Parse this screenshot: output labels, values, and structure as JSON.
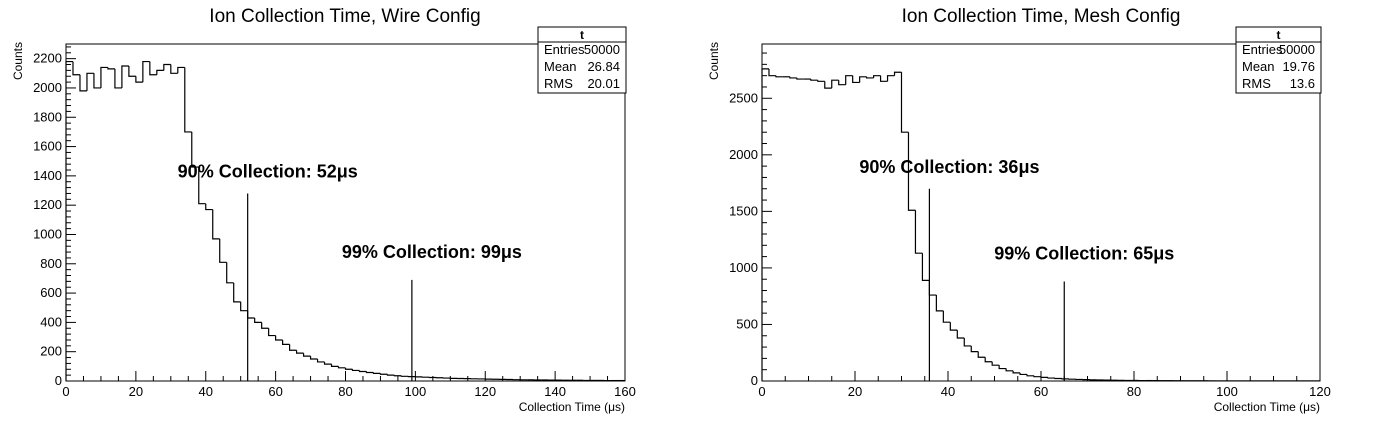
{
  "chart_data": [
    {
      "type": "histogram",
      "title": "Ion Collection Time, Wire Config",
      "xlabel": "Collection Time (μs)",
      "ylabel": "Counts",
      "xlim": [
        0,
        160
      ],
      "ylim": [
        0,
        2300
      ],
      "xticks": [
        0,
        20,
        40,
        60,
        80,
        100,
        120,
        140,
        160
      ],
      "yticks": [
        0,
        200,
        400,
        600,
        800,
        1000,
        1200,
        1400,
        1600,
        1800,
        2000,
        2200
      ],
      "bin_width": 2,
      "series": [
        {
          "values": [
            2180,
            2090,
            1980,
            2100,
            2000,
            2140,
            2130,
            2000,
            2150,
            2080,
            2040,
            2180,
            2090,
            2120,
            2160,
            2100,
            2140,
            1700,
            1460,
            1210,
            1170,
            970,
            810,
            670,
            540,
            480,
            430,
            400,
            360,
            310,
            280,
            250,
            210,
            190,
            170,
            150,
            130,
            115,
            100,
            90,
            80,
            72,
            65,
            58,
            52,
            46,
            40,
            36,
            32,
            30,
            28,
            26,
            24,
            22,
            20,
            18,
            17,
            16,
            15,
            14,
            13,
            12,
            11,
            10,
            9,
            8,
            8,
            7,
            7,
            6,
            6,
            5,
            5,
            5,
            4,
            4,
            4,
            3,
            3,
            3
          ]
        }
      ],
      "annotations": [
        {
          "label": "90% Collection: 52μs",
          "x": 52,
          "line_top": 1280
        },
        {
          "label": "99% Collection: 99μs",
          "x": 99,
          "line_top": 690
        }
      ],
      "stats": {
        "name": "t",
        "rows": [
          {
            "label": "Entries",
            "value": "50000"
          },
          {
            "label": "Mean",
            "value": "26.84"
          },
          {
            "label": "RMS",
            "value": "20.01"
          }
        ]
      }
    },
    {
      "type": "histogram",
      "title": "Ion Collection Time, Mesh Config",
      "xlabel": "Collection Time (μs)",
      "ylabel": "Counts",
      "xlim": [
        0,
        120
      ],
      "ylim": [
        0,
        2980
      ],
      "xticks": [
        0,
        20,
        40,
        60,
        80,
        100,
        120
      ],
      "yticks": [
        0,
        500,
        1000,
        1500,
        2000,
        2500
      ],
      "bin_width": 1.5,
      "series": [
        {
          "values": [
            2760,
            2700,
            2690,
            2690,
            2680,
            2670,
            2670,
            2660,
            2650,
            2590,
            2660,
            2620,
            2700,
            2640,
            2690,
            2680,
            2700,
            2650,
            2700,
            2730,
            2200,
            1510,
            1130,
            890,
            760,
            620,
            520,
            450,
            380,
            310,
            260,
            210,
            170,
            140,
            110,
            90,
            72,
            58,
            46,
            38,
            32,
            26,
            22,
            19,
            16,
            14,
            12,
            10,
            9,
            8,
            7,
            6,
            5,
            5,
            4,
            4,
            3,
            3,
            3,
            2,
            2,
            2,
            2,
            2,
            1,
            1,
            1,
            1,
            1,
            1,
            1,
            1,
            1,
            1,
            1,
            1,
            1,
            1,
            1,
            1
          ]
        }
      ],
      "annotations": [
        {
          "label": "90% Collection: 36μs",
          "x": 36,
          "line_top": 1700
        },
        {
          "label": "99% Collection: 65μs",
          "x": 65,
          "line_top": 880
        }
      ],
      "stats": {
        "name": "t",
        "rows": [
          {
            "label": "Entries",
            "value": "50000"
          },
          {
            "label": "Mean",
            "value": "19.76"
          },
          {
            "label": "RMS",
            "value": "13.6"
          }
        ]
      }
    }
  ]
}
